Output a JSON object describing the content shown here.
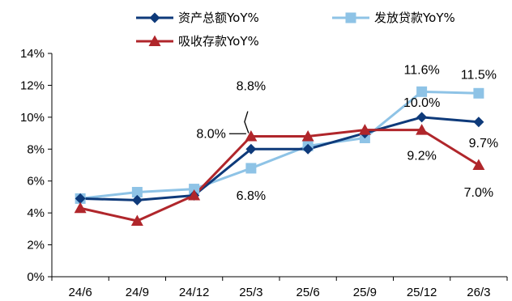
{
  "chart_data": {
    "type": "line",
    "title": "",
    "xlabel": "",
    "ylabel": "",
    "categories": [
      "24/6",
      "24/9",
      "24/12",
      "25/3",
      "25/6",
      "25/9",
      "25/12",
      "26/3"
    ],
    "ylim": [
      0,
      14
    ],
    "y_ticks": [
      "0%",
      "2%",
      "4%",
      "6%",
      "8%",
      "10%",
      "12%",
      "14%"
    ],
    "grid": false,
    "legend_position": "top",
    "series": [
      {
        "name": "资产总额YoY%",
        "color": "#0E3A7A",
        "marker": "diamond",
        "values": [
          4.9,
          4.8,
          5.1,
          8.0,
          8.0,
          9.0,
          10.0,
          9.7
        ]
      },
      {
        "name": "发放贷款YoY%",
        "color": "#8EC3E6",
        "marker": "square",
        "values": [
          4.9,
          5.3,
          5.5,
          6.8,
          8.2,
          8.7,
          11.6,
          11.5
        ]
      },
      {
        "name": "吸收存款YoY%",
        "color": "#B0262B",
        "marker": "triangle",
        "values": [
          4.3,
          3.5,
          5.1,
          8.8,
          8.8,
          9.2,
          9.2,
          7.0
        ]
      }
    ],
    "annotations": [
      {
        "text": "8.8%",
        "series": 2,
        "index": 3
      },
      {
        "text": "8.0%",
        "series": 0,
        "index": 3
      },
      {
        "text": "6.8%",
        "series": 1,
        "index": 3
      },
      {
        "text": "11.6%",
        "series": 1,
        "index": 6
      },
      {
        "text": "10.0%",
        "series": 0,
        "index": 6
      },
      {
        "text": "9.2%",
        "series": 2,
        "index": 6
      },
      {
        "text": "11.5%",
        "series": 1,
        "index": 7
      },
      {
        "text": "9.7%",
        "series": 0,
        "index": 7
      },
      {
        "text": "7.0%",
        "series": 2,
        "index": 7
      }
    ]
  }
}
